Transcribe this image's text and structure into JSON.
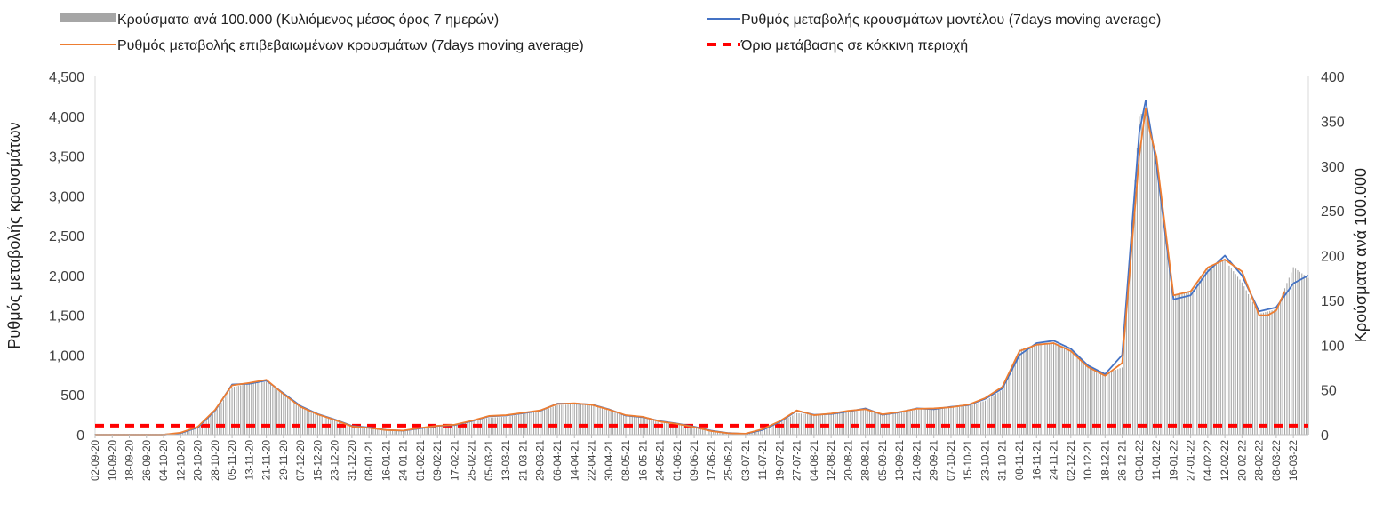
{
  "chart_data": {
    "type": "line",
    "legend_position": "top",
    "grid": false,
    "y_left": {
      "label": "Ρυθμός μεταβολής κρουσμάτων",
      "lim": [
        0,
        4500
      ],
      "ticks": [
        0,
        500,
        1000,
        1500,
        2000,
        2500,
        3000,
        3500,
        4000,
        4500
      ],
      "tick_labels": [
        "0",
        "500",
        "1,000",
        "1,500",
        "2,000",
        "2,500",
        "3,000",
        "3,500",
        "4,000",
        "4,500"
      ]
    },
    "y_right": {
      "label": "Κρούσματα ανά 100.000",
      "lim": [
        0,
        400
      ],
      "ticks": [
        0,
        50,
        100,
        150,
        200,
        250,
        300,
        350,
        400
      ],
      "tick_labels": [
        "0",
        "50",
        "100",
        "150",
        "200",
        "250",
        "300",
        "350",
        "400"
      ]
    },
    "x_range": [
      "2020-09-02",
      "2022-03-23"
    ],
    "x_tick_labels": [
      "02-09-20",
      "10-09-20",
      "18-09-20",
      "26-09-20",
      "04-10-20",
      "12-10-20",
      "20-10-20",
      "28-10-20",
      "05-11-20",
      "13-11-20",
      "21-11-20",
      "29-11-20",
      "07-12-20",
      "15-12-20",
      "23-12-20",
      "31-12-20",
      "08-01-21",
      "16-01-21",
      "24-01-21",
      "01-02-21",
      "09-02-21",
      "17-02-21",
      "25-02-21",
      "05-03-21",
      "13-03-21",
      "21-03-21",
      "29-03-21",
      "06-04-21",
      "14-04-21",
      "22-04-21",
      "30-04-21",
      "08-05-21",
      "16-05-21",
      "24-05-21",
      "01-06-21",
      "09-06-21",
      "17-06-21",
      "25-06-21",
      "03-07-21",
      "11-07-21",
      "19-07-21",
      "27-07-21",
      "04-08-21",
      "12-08-21",
      "20-08-21",
      "28-08-21",
      "05-09-21",
      "13-09-21",
      "21-09-21",
      "29-09-21",
      "07-10-21",
      "15-10-21",
      "23-10-21",
      "31-10-21",
      "08-11-21",
      "16-11-21",
      "24-11-21",
      "02-12-21",
      "10-12-21",
      "18-12-21",
      "26-12-21",
      "03-01-22",
      "11-01-22",
      "19-01-22",
      "27-01-22",
      "04-02-22",
      "12-02-22",
      "20-02-22",
      "28-02-22",
      "08-03-22",
      "16-03-22"
    ],
    "series": [
      {
        "name": "Κρούσματα ανά 100.000 (Κυλιόμενος μέσος όρος 7 ημερών)",
        "type": "bar",
        "axis": "right",
        "color": "#a6a6a6",
        "points": [
          [
            "2020-09-02",
            1
          ],
          [
            "2020-10-04",
            1
          ],
          [
            "2020-10-12",
            2
          ],
          [
            "2020-10-20",
            8
          ],
          [
            "2020-10-28",
            25
          ],
          [
            "2020-11-05",
            53
          ],
          [
            "2020-11-13",
            57
          ],
          [
            "2020-11-21",
            59
          ],
          [
            "2020-11-29",
            45
          ],
          [
            "2020-12-07",
            32
          ],
          [
            "2020-12-15",
            23
          ],
          [
            "2020-12-23",
            17
          ],
          [
            "2020-12-31",
            10
          ],
          [
            "2021-01-08",
            8
          ],
          [
            "2021-01-16",
            6
          ],
          [
            "2021-01-24",
            5
          ],
          [
            "2021-02-01",
            8
          ],
          [
            "2021-02-09",
            10
          ],
          [
            "2021-02-17",
            11
          ],
          [
            "2021-02-25",
            15
          ],
          [
            "2021-03-05",
            19
          ],
          [
            "2021-03-13",
            20
          ],
          [
            "2021-03-21",
            23
          ],
          [
            "2021-03-29",
            26
          ],
          [
            "2021-04-06",
            33
          ],
          [
            "2021-04-14",
            34
          ],
          [
            "2021-04-22",
            33
          ],
          [
            "2021-04-30",
            27
          ],
          [
            "2021-05-08",
            21
          ],
          [
            "2021-05-16",
            19
          ],
          [
            "2021-05-24",
            14
          ],
          [
            "2021-06-01",
            12
          ],
          [
            "2021-06-09",
            8
          ],
          [
            "2021-06-17",
            4
          ],
          [
            "2021-06-25",
            2
          ],
          [
            "2021-07-03",
            1
          ],
          [
            "2021-07-11",
            5
          ],
          [
            "2021-07-19",
            14
          ],
          [
            "2021-07-27",
            24
          ],
          [
            "2021-08-04",
            22
          ],
          [
            "2021-08-12",
            23
          ],
          [
            "2021-08-20",
            25
          ],
          [
            "2021-08-28",
            28
          ],
          [
            "2021-09-05",
            22
          ],
          [
            "2021-09-13",
            24
          ],
          [
            "2021-09-21",
            28
          ],
          [
            "2021-09-29",
            29
          ],
          [
            "2021-10-07",
            30
          ],
          [
            "2021-10-15",
            32
          ],
          [
            "2021-10-23",
            38
          ],
          [
            "2021-10-31",
            50
          ],
          [
            "2021-11-08",
            95
          ],
          [
            "2021-11-16",
            100
          ],
          [
            "2021-11-24",
            103
          ],
          [
            "2021-12-02",
            95
          ],
          [
            "2021-12-10",
            78
          ],
          [
            "2021-12-18",
            68
          ],
          [
            "2021-12-26",
            75
          ],
          [
            "2022-01-03",
            355
          ],
          [
            "2022-01-06",
            365
          ],
          [
            "2022-01-11",
            305
          ],
          [
            "2022-01-19",
            155
          ],
          [
            "2022-01-27",
            160
          ],
          [
            "2022-02-04",
            185
          ],
          [
            "2022-02-12",
            195
          ],
          [
            "2022-02-20",
            170
          ],
          [
            "2022-02-28",
            135
          ],
          [
            "2022-03-08",
            140
          ],
          [
            "2022-03-16",
            187
          ],
          [
            "2022-03-23",
            175
          ]
        ]
      },
      {
        "name": "Ρυθμός μεταβολής κρουσμάτων μοντέλου (7days moving average)",
        "type": "line",
        "axis": "left",
        "color": "#4472c4",
        "points": [
          [
            "2020-09-02",
            0
          ],
          [
            "2020-10-04",
            0
          ],
          [
            "2020-10-12",
            20
          ],
          [
            "2020-10-20",
            90
          ],
          [
            "2020-10-28",
            300
          ],
          [
            "2020-11-05",
            630
          ],
          [
            "2020-11-13",
            640
          ],
          [
            "2020-11-21",
            680
          ],
          [
            "2020-11-29",
            520
          ],
          [
            "2020-12-07",
            360
          ],
          [
            "2020-12-15",
            260
          ],
          [
            "2020-12-23",
            190
          ],
          [
            "2020-12-31",
            110
          ],
          [
            "2021-01-08",
            90
          ],
          [
            "2021-01-16",
            60
          ],
          [
            "2021-01-24",
            50
          ],
          [
            "2021-02-01",
            80
          ],
          [
            "2021-02-09",
            110
          ],
          [
            "2021-02-17",
            120
          ],
          [
            "2021-02-25",
            170
          ],
          [
            "2021-03-05",
            230
          ],
          [
            "2021-03-13",
            240
          ],
          [
            "2021-03-21",
            270
          ],
          [
            "2021-03-29",
            300
          ],
          [
            "2021-04-06",
            390
          ],
          [
            "2021-04-14",
            390
          ],
          [
            "2021-04-22",
            380
          ],
          [
            "2021-04-30",
            320
          ],
          [
            "2021-05-08",
            240
          ],
          [
            "2021-05-16",
            220
          ],
          [
            "2021-05-24",
            170
          ],
          [
            "2021-06-01",
            140
          ],
          [
            "2021-06-09",
            100
          ],
          [
            "2021-06-17",
            50
          ],
          [
            "2021-06-25",
            20
          ],
          [
            "2021-07-03",
            10
          ],
          [
            "2021-07-11",
            60
          ],
          [
            "2021-07-19",
            160
          ],
          [
            "2021-07-27",
            300
          ],
          [
            "2021-08-04",
            250
          ],
          [
            "2021-08-12",
            260
          ],
          [
            "2021-08-20",
            290
          ],
          [
            "2021-08-28",
            330
          ],
          [
            "2021-09-05",
            250
          ],
          [
            "2021-09-13",
            280
          ],
          [
            "2021-09-21",
            330
          ],
          [
            "2021-09-29",
            320
          ],
          [
            "2021-10-07",
            350
          ],
          [
            "2021-10-15",
            370
          ],
          [
            "2021-10-23",
            450
          ],
          [
            "2021-10-31",
            580
          ],
          [
            "2021-11-08",
            1000
          ],
          [
            "2021-11-16",
            1150
          ],
          [
            "2021-11-24",
            1180
          ],
          [
            "2021-12-02",
            1080
          ],
          [
            "2021-12-10",
            870
          ],
          [
            "2021-12-18",
            760
          ],
          [
            "2021-12-26",
            1000
          ],
          [
            "2022-01-03",
            3800
          ],
          [
            "2022-01-06",
            4200
          ],
          [
            "2022-01-11",
            3400
          ],
          [
            "2022-01-19",
            1700
          ],
          [
            "2022-01-27",
            1750
          ],
          [
            "2022-02-04",
            2050
          ],
          [
            "2022-02-12",
            2250
          ],
          [
            "2022-02-20",
            2000
          ],
          [
            "2022-02-28",
            1550
          ],
          [
            "2022-03-08",
            1600
          ],
          [
            "2022-03-16",
            1900
          ],
          [
            "2022-03-23",
            2000
          ]
        ]
      },
      {
        "name": "Ρυθμός μεταβολής επιβεβαιωμένων κρουσμάτων (7days moving average)",
        "type": "line",
        "axis": "left",
        "color": "#ed7d31",
        "points": [
          [
            "2020-09-02",
            0
          ],
          [
            "2020-10-04",
            0
          ],
          [
            "2020-10-12",
            25
          ],
          [
            "2020-10-20",
            100
          ],
          [
            "2020-10-28",
            310
          ],
          [
            "2020-11-05",
            620
          ],
          [
            "2020-11-13",
            650
          ],
          [
            "2020-11-21",
            690
          ],
          [
            "2020-11-29",
            510
          ],
          [
            "2020-12-07",
            350
          ],
          [
            "2020-12-15",
            255
          ],
          [
            "2020-12-23",
            185
          ],
          [
            "2020-12-31",
            105
          ],
          [
            "2021-01-08",
            85
          ],
          [
            "2021-01-16",
            58
          ],
          [
            "2021-01-24",
            52
          ],
          [
            "2021-02-01",
            85
          ],
          [
            "2021-02-09",
            112
          ],
          [
            "2021-02-17",
            125
          ],
          [
            "2021-02-25",
            175
          ],
          [
            "2021-03-05",
            235
          ],
          [
            "2021-03-13",
            245
          ],
          [
            "2021-03-21",
            275
          ],
          [
            "2021-03-29",
            305
          ],
          [
            "2021-04-06",
            385
          ],
          [
            "2021-04-14",
            395
          ],
          [
            "2021-04-22",
            375
          ],
          [
            "2021-04-30",
            315
          ],
          [
            "2021-05-08",
            245
          ],
          [
            "2021-05-16",
            225
          ],
          [
            "2021-05-24",
            165
          ],
          [
            "2021-06-01",
            135
          ],
          [
            "2021-06-09",
            95
          ],
          [
            "2021-06-17",
            45
          ],
          [
            "2021-06-25",
            18
          ],
          [
            "2021-07-03",
            12
          ],
          [
            "2021-07-11",
            70
          ],
          [
            "2021-07-19",
            170
          ],
          [
            "2021-07-27",
            305
          ],
          [
            "2021-08-04",
            245
          ],
          [
            "2021-08-12",
            265
          ],
          [
            "2021-08-20",
            300
          ],
          [
            "2021-08-28",
            320
          ],
          [
            "2021-09-05",
            255
          ],
          [
            "2021-09-13",
            285
          ],
          [
            "2021-09-21",
            325
          ],
          [
            "2021-09-29",
            330
          ],
          [
            "2021-10-07",
            345
          ],
          [
            "2021-10-15",
            375
          ],
          [
            "2021-10-23",
            460
          ],
          [
            "2021-10-31",
            600
          ],
          [
            "2021-11-08",
            1050
          ],
          [
            "2021-11-16",
            1130
          ],
          [
            "2021-11-24",
            1150
          ],
          [
            "2021-12-02",
            1050
          ],
          [
            "2021-12-10",
            850
          ],
          [
            "2021-12-18",
            740
          ],
          [
            "2021-12-26",
            900
          ],
          [
            "2022-01-03",
            3500
          ],
          [
            "2022-01-06",
            4100
          ],
          [
            "2022-01-08",
            3800
          ],
          [
            "2022-01-11",
            3500
          ],
          [
            "2022-01-19",
            1750
          ],
          [
            "2022-01-27",
            1800
          ],
          [
            "2022-02-04",
            2100
          ],
          [
            "2022-02-12",
            2200
          ],
          [
            "2022-02-20",
            2050
          ],
          [
            "2022-02-28",
            1500
          ],
          [
            "2022-03-04",
            1500
          ],
          [
            "2022-03-08",
            1560
          ],
          [
            "2022-03-12",
            1800
          ]
        ]
      },
      {
        "name": "Όριο μετάβασης σε κόκκινη περιοχή",
        "type": "line",
        "style": "dashed",
        "axis": "right",
        "color": "#ff0000",
        "points": [
          [
            "2020-09-02",
            10
          ],
          [
            "2022-03-23",
            10
          ]
        ]
      }
    ]
  }
}
